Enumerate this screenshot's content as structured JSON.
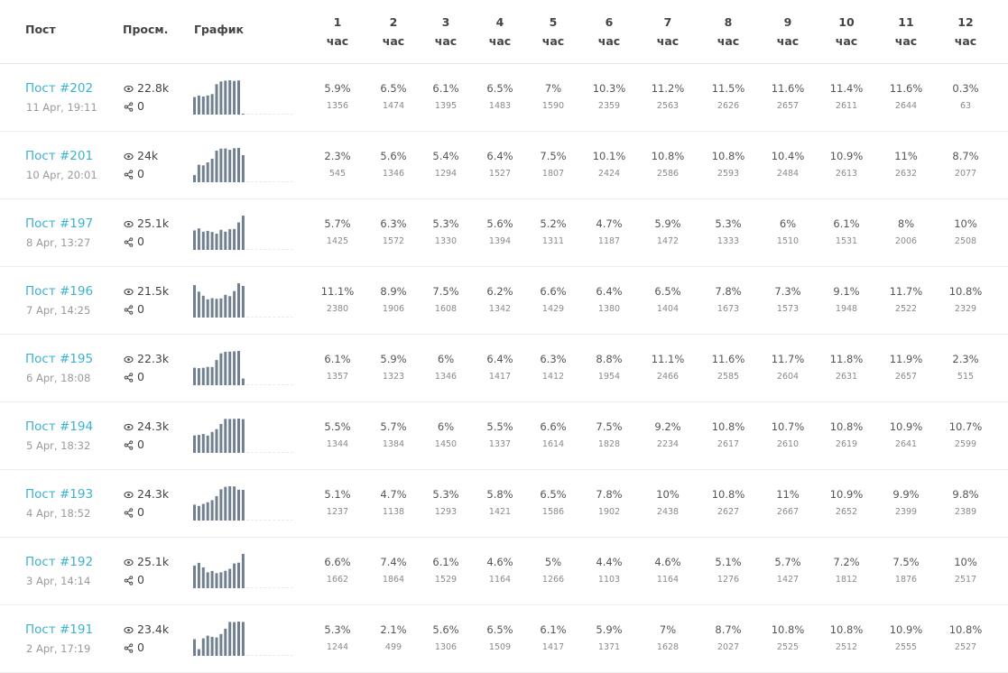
{
  "header": {
    "post": "Пост",
    "views": "Просм.",
    "chart": "График",
    "hour_word": "час",
    "hours": [
      "1",
      "2",
      "3",
      "4",
      "5",
      "6",
      "7",
      "8",
      "9",
      "10",
      "11",
      "12"
    ]
  },
  "colors": {
    "link": "#3ab3cf",
    "bar": "#708090"
  },
  "rows": [
    {
      "title": "Пост #202",
      "date": "11 Apr, 19:11",
      "views": "22.8k",
      "shares": "0",
      "pct": [
        "5.9%",
        "6.5%",
        "6.1%",
        "6.5%",
        "7%",
        "10.3%",
        "11.2%",
        "11.5%",
        "11.6%",
        "11.4%",
        "11.6%",
        "0.3%"
      ],
      "cnt": [
        "1356",
        "1474",
        "1395",
        "1483",
        "1590",
        "2359",
        "2563",
        "2626",
        "2657",
        "2611",
        "2644",
        "63"
      ]
    },
    {
      "title": "Пост #201",
      "date": "10 Apr, 20:01",
      "views": "24k",
      "shares": "0",
      "pct": [
        "2.3%",
        "5.6%",
        "5.4%",
        "6.4%",
        "7.5%",
        "10.1%",
        "10.8%",
        "10.8%",
        "10.4%",
        "10.9%",
        "11%",
        "8.7%"
      ],
      "cnt": [
        "545",
        "1346",
        "1294",
        "1527",
        "1807",
        "2424",
        "2586",
        "2593",
        "2484",
        "2613",
        "2632",
        "2077"
      ]
    },
    {
      "title": "Пост #197",
      "date": "8 Apr, 13:27",
      "views": "25.1k",
      "shares": "0",
      "pct": [
        "5.7%",
        "6.3%",
        "5.3%",
        "5.6%",
        "5.2%",
        "4.7%",
        "5.9%",
        "5.3%",
        "6%",
        "6.1%",
        "8%",
        "10%"
      ],
      "cnt": [
        "1425",
        "1572",
        "1330",
        "1394",
        "1311",
        "1187",
        "1472",
        "1333",
        "1510",
        "1531",
        "2006",
        "2508"
      ]
    },
    {
      "title": "Пост #196",
      "date": "7 Apr, 14:25",
      "views": "21.5k",
      "shares": "0",
      "pct": [
        "11.1%",
        "8.9%",
        "7.5%",
        "6.2%",
        "6.6%",
        "6.4%",
        "6.5%",
        "7.8%",
        "7.3%",
        "9.1%",
        "11.7%",
        "10.8%"
      ],
      "cnt": [
        "2380",
        "1906",
        "1608",
        "1342",
        "1429",
        "1380",
        "1404",
        "1673",
        "1573",
        "1948",
        "2522",
        "2329"
      ]
    },
    {
      "title": "Пост #195",
      "date": "6 Apr, 18:08",
      "views": "22.3k",
      "shares": "0",
      "pct": [
        "6.1%",
        "5.9%",
        "6%",
        "6.4%",
        "6.3%",
        "8.8%",
        "11.1%",
        "11.6%",
        "11.7%",
        "11.8%",
        "11.9%",
        "2.3%"
      ],
      "cnt": [
        "1357",
        "1323",
        "1346",
        "1417",
        "1412",
        "1954",
        "2466",
        "2585",
        "2604",
        "2631",
        "2657",
        "515"
      ]
    },
    {
      "title": "Пост #194",
      "date": "5 Apr, 18:32",
      "views": "24.3k",
      "shares": "0",
      "pct": [
        "5.5%",
        "5.7%",
        "6%",
        "5.5%",
        "6.6%",
        "7.5%",
        "9.2%",
        "10.8%",
        "10.7%",
        "10.8%",
        "10.9%",
        "10.7%"
      ],
      "cnt": [
        "1344",
        "1384",
        "1450",
        "1337",
        "1614",
        "1828",
        "2234",
        "2617",
        "2610",
        "2619",
        "2641",
        "2599"
      ]
    },
    {
      "title": "Пост #193",
      "date": "4 Apr, 18:52",
      "views": "24.3k",
      "shares": "0",
      "pct": [
        "5.1%",
        "4.7%",
        "5.3%",
        "5.8%",
        "6.5%",
        "7.8%",
        "10%",
        "10.8%",
        "11%",
        "10.9%",
        "9.9%",
        "9.8%"
      ],
      "cnt": [
        "1237",
        "1138",
        "1293",
        "1421",
        "1586",
        "1902",
        "2438",
        "2627",
        "2667",
        "2652",
        "2399",
        "2389"
      ]
    },
    {
      "title": "Пост #192",
      "date": "3 Apr, 14:14",
      "views": "25.1k",
      "shares": "0",
      "pct": [
        "6.6%",
        "7.4%",
        "6.1%",
        "4.6%",
        "5%",
        "4.4%",
        "4.6%",
        "5.1%",
        "5.7%",
        "7.2%",
        "7.5%",
        "10%"
      ],
      "cnt": [
        "1662",
        "1864",
        "1529",
        "1164",
        "1266",
        "1103",
        "1164",
        "1276",
        "1427",
        "1812",
        "1876",
        "2517"
      ]
    },
    {
      "title": "Пост #191",
      "date": "2 Apr, 17:19",
      "views": "23.4k",
      "shares": "0",
      "pct": [
        "5.3%",
        "2.1%",
        "5.6%",
        "6.5%",
        "6.1%",
        "5.9%",
        "7%",
        "8.7%",
        "10.8%",
        "10.8%",
        "10.9%",
        "10.8%"
      ],
      "cnt": [
        "1244",
        "499",
        "1306",
        "1509",
        "1417",
        "1371",
        "1628",
        "2027",
        "2525",
        "2512",
        "2555",
        "2527"
      ]
    }
  ]
}
